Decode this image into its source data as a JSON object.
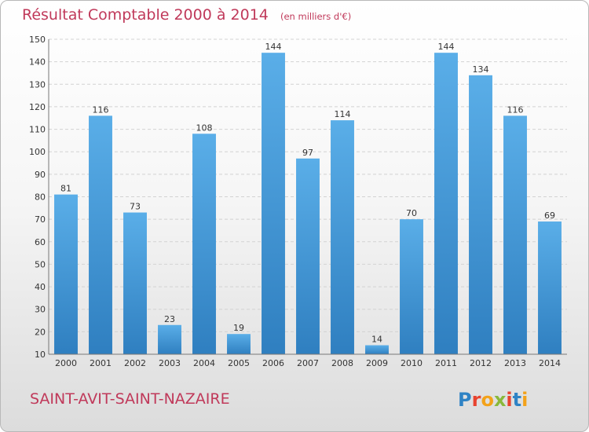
{
  "header": {
    "title": "Résultat Comptable 2000 à 2014",
    "unit_note": "(en milliers d'€)"
  },
  "footer": {
    "commune": "SAINT-AVIT-SAINT-NAZAIRE",
    "logo_letters": [
      "P",
      "r",
      "o",
      "x",
      "i",
      "t",
      "i"
    ]
  },
  "colors": {
    "title": "#c0395a",
    "bar_light": "#5aaee8",
    "bar_dark": "#2f7fc0",
    "logo_letters": [
      "#2f83c5",
      "#e8432f",
      "#f3a21a",
      "#89b83a",
      "#e8432f",
      "#2f83c5",
      "#f3a21a"
    ]
  },
  "chart_data": {
    "type": "bar",
    "title": "Résultat Comptable 2000 à 2014",
    "subtitle": "(en milliers d'€)",
    "categories": [
      "2000",
      "2001",
      "2002",
      "2003",
      "2004",
      "2005",
      "2006",
      "2007",
      "2008",
      "2009",
      "2010",
      "2011",
      "2012",
      "2013",
      "2014"
    ],
    "values": [
      81,
      116,
      73,
      23,
      108,
      19,
      144,
      97,
      114,
      14,
      70,
      144,
      134,
      116,
      69
    ],
    "ylim": [
      10,
      150
    ],
    "yticks": [
      10,
      20,
      30,
      40,
      50,
      60,
      70,
      80,
      90,
      100,
      110,
      120,
      130,
      140,
      150
    ],
    "grid": true,
    "data_labels": true
  }
}
